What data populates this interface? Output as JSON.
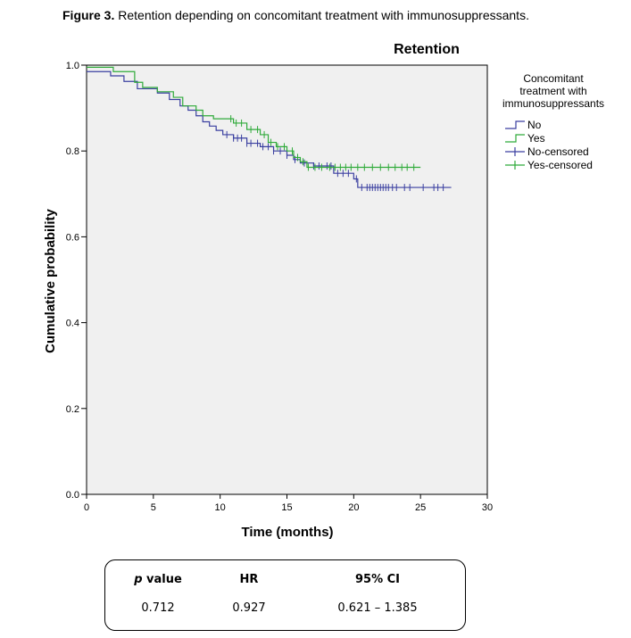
{
  "caption": {
    "label": "Figure 3.",
    "text": " Retention depending on concomitant treatment with immunosuppressants."
  },
  "chart_data": {
    "type": "line",
    "title": "Retention",
    "xlabel": "Time (months)",
    "ylabel": "Cumulative probability",
    "xlim": [
      0,
      30
    ],
    "ylim": [
      0,
      1.0
    ],
    "x_ticks": [
      0,
      5,
      10,
      15,
      20,
      25,
      30
    ],
    "y_ticks": [
      0.0,
      0.2,
      0.4,
      0.6,
      0.8,
      1.0
    ],
    "y_tick_labels": [
      "0.0",
      "0.2",
      "0.4",
      "0.6",
      "0.8",
      "1.0"
    ],
    "grid": false,
    "background_color": "#f0f0f0",
    "legend": {
      "title": "Concomitant treatment with immunosuppressants",
      "title_lines": [
        "Concomitant",
        "treatment with",
        "immunosuppressants"
      ],
      "placement": "right",
      "entries": [
        "No",
        "Yes",
        "No-censored",
        "Yes-censored"
      ]
    },
    "series": [
      {
        "name": "No",
        "color": "#3a3fa0",
        "steps": [
          [
            0,
            0.985
          ],
          [
            1.8,
            0.975
          ],
          [
            2.8,
            0.962
          ],
          [
            3.8,
            0.945
          ],
          [
            5.3,
            0.935
          ],
          [
            6.2,
            0.92
          ],
          [
            7.0,
            0.905
          ],
          [
            7.6,
            0.895
          ],
          [
            8.2,
            0.882
          ],
          [
            8.7,
            0.868
          ],
          [
            9.2,
            0.858
          ],
          [
            9.7,
            0.848
          ],
          [
            10.2,
            0.838
          ],
          [
            11.0,
            0.83
          ],
          [
            12.0,
            0.818
          ],
          [
            13.0,
            0.81
          ],
          [
            14.0,
            0.8
          ],
          [
            15.0,
            0.79
          ],
          [
            15.5,
            0.78
          ],
          [
            16.0,
            0.772
          ],
          [
            17.0,
            0.765
          ],
          [
            18.5,
            0.748
          ],
          [
            20.0,
            0.735
          ],
          [
            20.3,
            0.715
          ],
          [
            27.3,
            0.715
          ]
        ],
        "censored_x": [
          10.5,
          11.0,
          11.3,
          11.6,
          12.0,
          12.3,
          12.8,
          13.2,
          13.6,
          14.0,
          14.5,
          15.0,
          15.6,
          16.3,
          17.0,
          17.4,
          18.0,
          18.3,
          18.8,
          19.2,
          19.6,
          20.2,
          20.6,
          21.0,
          21.2,
          21.4,
          21.6,
          21.8,
          22.0,
          22.2,
          22.4,
          22.6,
          22.9,
          23.2,
          23.8,
          24.2,
          25.2,
          26.0,
          26.3,
          26.7
        ]
      },
      {
        "name": "Yes",
        "color": "#2faa3a",
        "steps": [
          [
            0,
            0.995
          ],
          [
            2.0,
            0.985
          ],
          [
            3.6,
            0.96
          ],
          [
            4.2,
            0.948
          ],
          [
            5.3,
            0.938
          ],
          [
            6.5,
            0.925
          ],
          [
            7.2,
            0.905
          ],
          [
            8.2,
            0.895
          ],
          [
            8.7,
            0.882
          ],
          [
            9.5,
            0.875
          ],
          [
            11.0,
            0.865
          ],
          [
            12.0,
            0.85
          ],
          [
            13.0,
            0.838
          ],
          [
            13.6,
            0.82
          ],
          [
            14.2,
            0.81
          ],
          [
            15.0,
            0.8
          ],
          [
            15.5,
            0.785
          ],
          [
            16.0,
            0.775
          ],
          [
            16.5,
            0.762
          ],
          [
            25.0,
            0.762
          ]
        ],
        "censored_x": [
          10.8,
          11.2,
          11.6,
          12.3,
          12.8,
          13.3,
          13.8,
          14.3,
          14.8,
          15.4,
          15.8,
          16.2,
          16.6,
          17.1,
          17.6,
          18.2,
          18.6,
          19.0,
          19.4,
          19.8,
          20.3,
          20.8,
          21.4,
          22.0,
          22.6,
          23.1,
          23.6,
          24.0,
          24.5
        ]
      }
    ]
  },
  "stats_table": {
    "headers": {
      "p_italic": "p",
      "p_rest": " value",
      "hr": "HR",
      "ci": "95% CI"
    },
    "values": {
      "p": "0.712",
      "hr": "0.927",
      "ci": "0.621 – 1.385"
    }
  }
}
